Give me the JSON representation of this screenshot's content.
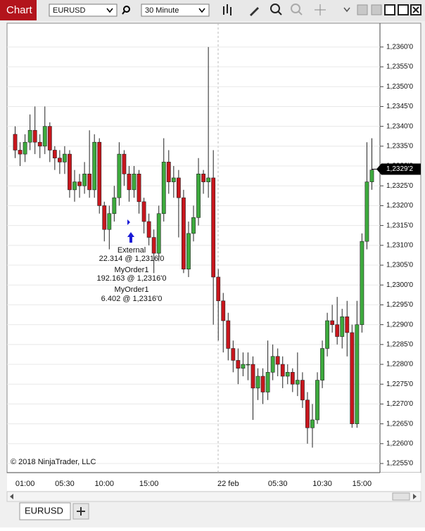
{
  "window": {
    "title": "Chart",
    "instrument": "EURUSD",
    "interval": "30 Minute",
    "tab": "EURUSD"
  },
  "chart_data": {
    "type": "candlestick",
    "categories": [
      null,
      null,
      "01:00",
      null,
      null,
      null,
      null,
      null,
      null,
      null,
      "05:30",
      null,
      null,
      null,
      null,
      null,
      null,
      null,
      "10:00",
      null,
      null,
      null,
      null,
      null,
      null,
      null,
      null,
      "15:00",
      null,
      null,
      null,
      null,
      null,
      null,
      null,
      null,
      null,
      null,
      null,
      null,
      null,
      null,
      null,
      "22 feb",
      null,
      null,
      null,
      null,
      null,
      null,
      null,
      null,
      null,
      "05:30",
      null,
      null,
      null,
      null,
      null,
      null,
      null,
      null,
      "10:30",
      null,
      null,
      null,
      null,
      null,
      null,
      null,
      "15:00",
      null,
      null
    ],
    "open": [
      1.2338,
      1.2334,
      1.2333,
      1.2336,
      1.2339,
      1.2336,
      1.2335,
      1.234,
      1.2334,
      1.2332,
      1.2331,
      1.2333,
      1.2324,
      1.2326,
      1.2325,
      1.2328,
      1.2324,
      1.2336,
      1.232,
      1.2314,
      1.2318,
      1.2322,
      1.2333,
      1.2328,
      1.2324,
      1.2328,
      1.2321,
      1.2316,
      1.2312,
      1.2308,
      1.2318,
      1.2331,
      1.2326,
      1.2327,
      1.2322,
      1.2304,
      1.2313,
      1.2317,
      1.2328,
      1.2326,
      1.2327,
      1.2302,
      1.2296,
      1.2291,
      1.2284,
      1.2281,
      1.2279,
      1.228,
      1.228,
      1.2274,
      1.2277,
      1.2273,
      1.2278,
      1.2282,
      1.228,
      1.2277,
      1.2278,
      1.2275,
      1.2276,
      1.2271,
      1.2264,
      1.2266,
      1.2276,
      1.2284,
      1.2291,
      1.229,
      1.2287,
      1.2292,
      1.2288,
      1.2265,
      1.229,
      1.2311,
      1.2326
    ],
    "high": [
      1.234,
      1.2336,
      1.2338,
      1.2343,
      1.2345,
      1.2338,
      1.2345,
      1.2341,
      1.2335,
      1.2334,
      1.2335,
      1.2334,
      1.2329,
      1.2328,
      1.2331,
      1.2339,
      1.2338,
      1.2337,
      1.2321,
      1.232,
      1.2325,
      1.2336,
      1.2334,
      1.233,
      1.233,
      1.2329,
      1.2322,
      1.2318,
      1.2314,
      1.232,
      1.2337,
      1.2334,
      1.233,
      1.2329,
      1.2324,
      1.2316,
      1.232,
      1.2332,
      1.2329,
      1.236,
      1.2334,
      1.2304,
      1.2298,
      1.2293,
      1.2286,
      1.2284,
      1.2283,
      1.2283,
      1.2282,
      1.2279,
      1.2279,
      1.2286,
      1.2285,
      1.2284,
      1.2282,
      1.228,
      1.2279,
      1.2283,
      1.2278,
      1.2273,
      1.227,
      1.2278,
      1.2286,
      1.2293,
      1.2295,
      1.2297,
      1.2294,
      1.2296,
      1.229,
      1.2296,
      1.2313,
      1.2336,
      1.2337
    ],
    "low": [
      1.2332,
      1.233,
      1.2331,
      1.2334,
      1.2333,
      1.2332,
      1.2333,
      1.2331,
      1.2329,
      1.2328,
      1.2328,
      1.2322,
      1.2321,
      1.2322,
      1.2323,
      1.2322,
      1.2322,
      1.2318,
      1.2311,
      1.2309,
      1.2316,
      1.232,
      1.2325,
      1.2321,
      1.2322,
      1.2318,
      1.2313,
      1.231,
      1.2303,
      1.2306,
      1.2316,
      1.2323,
      1.2322,
      1.2312,
      1.2303,
      1.2302,
      1.2311,
      1.2315,
      1.2323,
      1.2322,
      1.229,
      1.2286,
      1.2283,
      1.2281,
      1.2278,
      1.2275,
      1.2277,
      1.2276,
      1.2266,
      1.2271,
      1.227,
      1.2271,
      1.2276,
      1.2277,
      1.2274,
      1.2275,
      1.2273,
      1.2272,
      1.2269,
      1.226,
      1.2259,
      1.2265,
      1.2274,
      1.2282,
      1.2288,
      1.2285,
      1.2284,
      1.2282,
      1.2264,
      1.2264,
      1.2288,
      1.2309,
      1.2324
    ],
    "close": [
      1.2334,
      1.2333,
      1.2336,
      1.2339,
      1.2336,
      1.2335,
      1.234,
      1.2334,
      1.2332,
      1.2331,
      1.2333,
      1.2324,
      1.2326,
      1.2325,
      1.2328,
      1.2324,
      1.2336,
      1.232,
      1.2314,
      1.2318,
      1.2322,
      1.2333,
      1.2328,
      1.2324,
      1.2328,
      1.2321,
      1.2316,
      1.2312,
      1.2308,
      1.2318,
      1.2331,
      1.2326,
      1.2327,
      1.2322,
      1.2304,
      1.2313,
      1.2317,
      1.2328,
      1.2326,
      1.2327,
      1.2302,
      1.2296,
      1.2291,
      1.2284,
      1.2281,
      1.2279,
      1.228,
      1.228,
      1.2274,
      1.2277,
      1.2273,
      1.2278,
      1.2282,
      1.228,
      1.2277,
      1.2278,
      1.2275,
      1.2276,
      1.2271,
      1.2264,
      1.2266,
      1.2276,
      1.2284,
      1.2291,
      1.229,
      1.2287,
      1.2292,
      1.2288,
      1.2265,
      1.229,
      1.2311,
      1.2326,
      1.2329
    ],
    "up_color": "#3daa3d",
    "down_color": "#c8161d",
    "ylim": [
      1.22527,
      1.2366
    ],
    "yticks": [
      {
        "value": 1.2255,
        "label": "1,2255'0"
      },
      {
        "value": 1.226,
        "label": "1,2260'0"
      },
      {
        "value": 1.2265,
        "label": "1,2265'0"
      },
      {
        "value": 1.227,
        "label": "1,2270'0"
      },
      {
        "value": 1.2275,
        "label": "1,2275'0"
      },
      {
        "value": 1.228,
        "label": "1,2280'0"
      },
      {
        "value": 1.2285,
        "label": "1,2285'0"
      },
      {
        "value": 1.229,
        "label": "1,2290'0"
      },
      {
        "value": 1.2295,
        "label": "1,2295'0"
      },
      {
        "value": 1.23,
        "label": "1,2300'0"
      },
      {
        "value": 1.2305,
        "label": "1,2305'0"
      },
      {
        "value": 1.231,
        "label": "1,2310'0"
      },
      {
        "value": 1.2315,
        "label": "1,2315'0"
      },
      {
        "value": 1.232,
        "label": "1,2320'0"
      },
      {
        "value": 1.2325,
        "label": "1,2325'0"
      },
      {
        "value": 1.233,
        "label": "1,2330'0"
      },
      {
        "value": 1.2335,
        "label": "1,2335'0"
      },
      {
        "value": 1.234,
        "label": "1,2340'0"
      },
      {
        "value": 1.2345,
        "label": "1,2345'0"
      },
      {
        "value": 1.235,
        "label": "1,2350'0"
      },
      {
        "value": 1.2355,
        "label": "1,2355'0"
      },
      {
        "value": 1.236,
        "label": "1,2360'0"
      }
    ],
    "grid": true,
    "last_price": {
      "value": 1.23292,
      "label": "1,2329'2"
    },
    "annotations": [
      "External",
      "22.314 @ 1,2316'0",
      "MyOrder1",
      "192.163 @ 1,2316'0",
      "MyOrder1",
      "6.402 @ 1,2316'0"
    ],
    "copyright": "© 2018 NinjaTrader, LLC"
  }
}
